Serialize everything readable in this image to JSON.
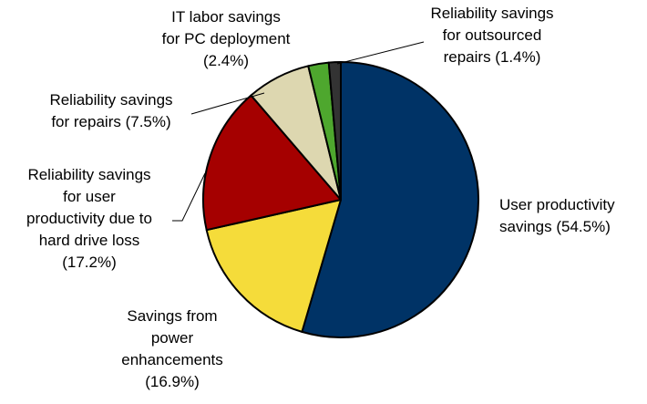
{
  "chart_data": {
    "type": "pie",
    "slices": [
      {
        "label_lines": [
          "User productivity",
          "savings (54.5%)"
        ],
        "value": 54.5,
        "color": "#003366"
      },
      {
        "label_lines": [
          "Savings from",
          "power",
          "enhancements",
          "(16.9%)"
        ],
        "value": 16.9,
        "color": "#f5dc3a"
      },
      {
        "label_lines": [
          "Reliability savings",
          "for user",
          "productivity due to",
          "hard drive loss",
          "(17.2%)"
        ],
        "value": 17.2,
        "color": "#a50000"
      },
      {
        "label_lines": [
          "Reliability savings",
          "for repairs (7.5%)"
        ],
        "value": 7.5,
        "color": "#ddd7b0"
      },
      {
        "label_lines": [
          "IT labor savings",
          "for PC deployment",
          "(2.4%)"
        ],
        "value": 2.4,
        "color": "#4ea72e"
      },
      {
        "label_lines": [
          "Reliability savings",
          "for outsourced",
          "repairs (1.4%)"
        ],
        "value": 1.4,
        "color": "#333333"
      }
    ]
  }
}
